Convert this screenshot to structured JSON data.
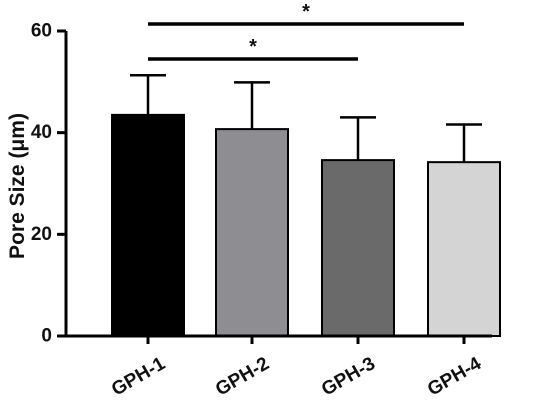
{
  "chart_data": {
    "type": "bar",
    "ylabel": "Pore Size (μm)",
    "ylim": [
      0,
      60
    ],
    "yticks": [
      0,
      20,
      40,
      60
    ],
    "categories": [
      "GPH-1",
      "GPH-2",
      "GPH-3",
      "GPH-4"
    ],
    "values": [
      43.5,
      40.7,
      34.6,
      34.2
    ],
    "error_upper": [
      7.8,
      9.2,
      8.4,
      7.4
    ],
    "bar_colors": [
      "#000000",
      "#8e8d92",
      "#6a6a6a",
      "#d4d4d4"
    ],
    "significance": [
      {
        "from": "GPH-1",
        "to": "GPH-4",
        "label": "*"
      },
      {
        "from": "GPH-1",
        "to": "GPH-3",
        "label": "*"
      }
    ]
  }
}
